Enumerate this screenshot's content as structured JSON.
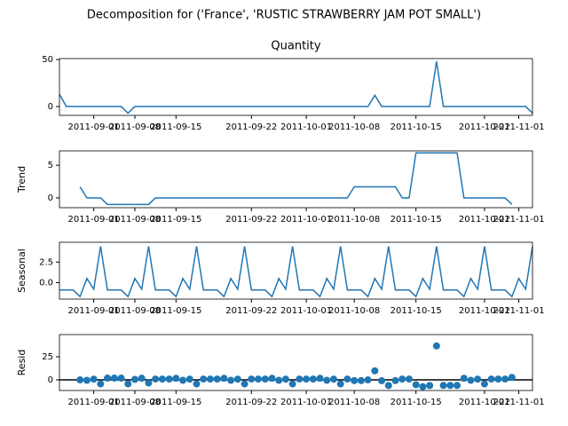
{
  "title": "Decomposition for ('France', 'RUSTIC STRAWBERRY JAM POT SMALL')",
  "chart_data": [
    {
      "type": "line",
      "title": "Quantity",
      "x": [
        0,
        1,
        2,
        3,
        4,
        5,
        6,
        7,
        8,
        9,
        10,
        11,
        12,
        13,
        14,
        15,
        16,
        17,
        18,
        19,
        20,
        21,
        22,
        23,
        24,
        25,
        26,
        27,
        28,
        29,
        30,
        31,
        32,
        33,
        34,
        35,
        36,
        37,
        38,
        39,
        40,
        41,
        42,
        43,
        44,
        45,
        46,
        47,
        48,
        49,
        50,
        51,
        52,
        53,
        54,
        55,
        56,
        57,
        58,
        59,
        60,
        61,
        62,
        63,
        64,
        65,
        66,
        67,
        68,
        69
      ],
      "xlim": [
        0,
        69
      ],
      "xticks": [
        {
          "value": 5,
          "label": "2011-09-01"
        },
        {
          "value": 11,
          "label": "2011-09-08"
        },
        {
          "value": 17,
          "label": "2011-09-15"
        },
        {
          "value": 28,
          "label": "2011-09-22"
        },
        {
          "value": 36,
          "label": "2011-10-01"
        },
        {
          "value": 43,
          "label": "2011-10-08"
        },
        {
          "value": 52,
          "label": "2011-10-15"
        },
        {
          "value": 62,
          "label": "2011-10-22"
        },
        {
          "value": 67,
          "label": "2011-11-01"
        }
      ],
      "ylim": [
        -9.4,
        51
      ],
      "yticks": [
        0,
        50
      ],
      "series": [
        {
          "color": "#1f77b4",
          "values": [
            13,
            0,
            0,
            0,
            0,
            0,
            0,
            0,
            0,
            0,
            -7,
            0,
            0,
            0,
            0,
            0,
            0,
            0,
            0,
            0,
            0,
            0,
            0,
            0,
            0,
            0,
            0,
            0,
            0,
            0,
            0,
            0,
            0,
            0,
            0,
            0,
            0,
            0,
            0,
            0,
            0,
            0,
            0,
            0,
            0,
            0,
            12,
            0,
            0,
            0,
            0,
            0,
            0,
            0,
            0,
            48,
            0,
            0,
            0,
            0,
            0,
            0,
            0,
            0,
            0,
            0,
            0,
            0,
            0,
            -7
          ]
        }
      ]
    },
    {
      "type": "line",
      "y_label": "Trend",
      "x": [
        0,
        1,
        2,
        3,
        4,
        5,
        6,
        7,
        8,
        9,
        10,
        11,
        12,
        13,
        14,
        15,
        16,
        17,
        18,
        19,
        20,
        21,
        22,
        23,
        24,
        25,
        26,
        27,
        28,
        29,
        30,
        31,
        32,
        33,
        34,
        35,
        36,
        37,
        38,
        39,
        40,
        41,
        42,
        43,
        44,
        45,
        46,
        47,
        48,
        49,
        50,
        51,
        52,
        53,
        54,
        55,
        56,
        57,
        58,
        59,
        60,
        61,
        62,
        63,
        64,
        65,
        66,
        67,
        68,
        69
      ],
      "xlim": [
        0,
        69
      ],
      "xticks": [
        {
          "value": 5,
          "label": "2011-09-01"
        },
        {
          "value": 11,
          "label": "2011-09-08"
        },
        {
          "value": 17,
          "label": "2011-09-15"
        },
        {
          "value": 28,
          "label": "2011-09-22"
        },
        {
          "value": 36,
          "label": "2011-10-01"
        },
        {
          "value": 43,
          "label": "2011-10-08"
        },
        {
          "value": 52,
          "label": "2011-10-15"
        },
        {
          "value": 62,
          "label": "2011-10-22"
        },
        {
          "value": 67,
          "label": "2011-11-01"
        }
      ],
      "ylim": [
        -1.5,
        7.2
      ],
      "yticks": [
        0,
        5
      ],
      "series": [
        {
          "color": "#1f77b4",
          "values": [
            null,
            null,
            null,
            1.7,
            0,
            0,
            0,
            -1,
            -1,
            -1,
            -1,
            -1,
            -1,
            -1,
            0,
            0,
            0,
            0,
            0,
            0,
            0,
            0,
            0,
            0,
            0,
            0,
            0,
            0,
            0,
            0,
            0,
            0,
            0,
            0,
            0,
            0,
            0,
            0,
            0,
            0,
            0,
            0,
            0,
            1.7,
            1.7,
            1.7,
            1.7,
            1.7,
            1.7,
            1.7,
            0,
            0,
            6.9,
            6.9,
            6.9,
            6.9,
            6.9,
            6.9,
            6.9,
            0,
            0,
            0,
            0,
            0,
            0,
            0,
            -1,
            null,
            null,
            null
          ]
        }
      ]
    },
    {
      "type": "line",
      "y_label": "Seasonal",
      "x": [
        0,
        1,
        2,
        3,
        4,
        5,
        6,
        7,
        8,
        9,
        10,
        11,
        12,
        13,
        14,
        15,
        16,
        17,
        18,
        19,
        20,
        21,
        22,
        23,
        24,
        25,
        26,
        27,
        28,
        29,
        30,
        31,
        32,
        33,
        34,
        35,
        36,
        37,
        38,
        39,
        40,
        41,
        42,
        43,
        44,
        45,
        46,
        47,
        48,
        49,
        50,
        51,
        52,
        53,
        54,
        55,
        56,
        57,
        58,
        59,
        60,
        61,
        62,
        63,
        64,
        65,
        66,
        67,
        68,
        69
      ],
      "xlim": [
        0,
        69
      ],
      "xticks": [
        {
          "value": 5,
          "label": "2011-09-01"
        },
        {
          "value": 11,
          "label": "2011-09-08"
        },
        {
          "value": 17,
          "label": "2011-09-15"
        },
        {
          "value": 28,
          "label": "2011-09-22"
        },
        {
          "value": 36,
          "label": "2011-10-01"
        },
        {
          "value": 43,
          "label": "2011-10-08"
        },
        {
          "value": 52,
          "label": "2011-10-15"
        },
        {
          "value": 62,
          "label": "2011-10-22"
        },
        {
          "value": 67,
          "label": "2011-11-01"
        }
      ],
      "ylim": [
        -2.0,
        4.9
      ],
      "yticks": [
        {
          "value": 0,
          "label": "0.0"
        },
        {
          "value": 2.5,
          "label": "2.5"
        }
      ],
      "series": [
        {
          "color": "#1f77b4",
          "values": [
            -0.9,
            -0.9,
            -0.9,
            -1.7,
            0.5,
            -0.8,
            4.4,
            -0.9,
            -0.9,
            -0.9,
            -1.7,
            0.5,
            -0.8,
            4.4,
            -0.9,
            -0.9,
            -0.9,
            -1.7,
            0.5,
            -0.8,
            4.4,
            -0.9,
            -0.9,
            -0.9,
            -1.7,
            0.5,
            -0.8,
            4.4,
            -0.9,
            -0.9,
            -0.9,
            -1.7,
            0.5,
            -0.8,
            4.4,
            -0.9,
            -0.9,
            -0.9,
            -1.7,
            0.5,
            -0.8,
            4.4,
            -0.9,
            -0.9,
            -0.9,
            -1.7,
            0.5,
            -0.8,
            4.4,
            -0.9,
            -0.9,
            -0.9,
            -1.7,
            0.5,
            -0.8,
            4.4,
            -0.9,
            -0.9,
            -0.9,
            -1.7,
            0.5,
            -0.8,
            4.4,
            -0.9,
            -0.9,
            -0.9,
            -1.7,
            0.5,
            -0.8,
            4.4
          ]
        }
      ]
    },
    {
      "type": "scatter",
      "y_label": "Resid",
      "x": [
        0,
        1,
        2,
        3,
        4,
        5,
        6,
        7,
        8,
        9,
        10,
        11,
        12,
        13,
        14,
        15,
        16,
        17,
        18,
        19,
        20,
        21,
        22,
        23,
        24,
        25,
        26,
        27,
        28,
        29,
        30,
        31,
        32,
        33,
        34,
        35,
        36,
        37,
        38,
        39,
        40,
        41,
        42,
        43,
        44,
        45,
        46,
        47,
        48,
        49,
        50,
        51,
        52,
        53,
        54,
        55,
        56,
        57,
        58,
        59,
        60,
        61,
        62,
        63,
        64,
        65,
        66,
        67,
        68,
        69
      ],
      "xlim": [
        0,
        69
      ],
      "xticks": [
        {
          "value": 5,
          "label": "2011-09-01"
        },
        {
          "value": 11,
          "label": "2011-09-08"
        },
        {
          "value": 17,
          "label": "2011-09-15"
        },
        {
          "value": 28,
          "label": "2011-09-22"
        },
        {
          "value": 36,
          "label": "2011-10-01"
        },
        {
          "value": 43,
          "label": "2011-10-08"
        },
        {
          "value": 52,
          "label": "2011-10-15"
        },
        {
          "value": 62,
          "label": "2011-10-22"
        },
        {
          "value": 67,
          "label": "2011-11-01"
        }
      ],
      "ylim": [
        -11.5,
        49
      ],
      "yticks": [
        0,
        25
      ],
      "hline": 0,
      "series": [
        {
          "color": "#1f77b4",
          "values": [
            null,
            null,
            null,
            0,
            -0.5,
            0.8,
            -4.4,
            1.9,
            1.9,
            1.9,
            -4.3,
            0.5,
            1.8,
            -3.4,
            0.9,
            0.9,
            0.9,
            1.7,
            -0.5,
            0.8,
            -4.4,
            0.9,
            0.9,
            0.9,
            1.7,
            -0.5,
            0.8,
            -4.4,
            0.9,
            0.9,
            0.9,
            1.7,
            -0.5,
            0.8,
            -4.4,
            0.9,
            0.9,
            0.9,
            1.7,
            -0.5,
            0.8,
            -4.4,
            0.9,
            -0.8,
            -0.8,
            0,
            9.8,
            -0.9,
            -6.1,
            -0.8,
            0.9,
            0.9,
            -5.2,
            -7.4,
            -6.1,
            36.7,
            -6.0,
            -6.0,
            -6.0,
            1.7,
            -0.5,
            0.8,
            -4.4,
            0.9,
            0.9,
            0.9,
            2.7,
            null,
            null,
            null
          ]
        }
      ]
    }
  ]
}
